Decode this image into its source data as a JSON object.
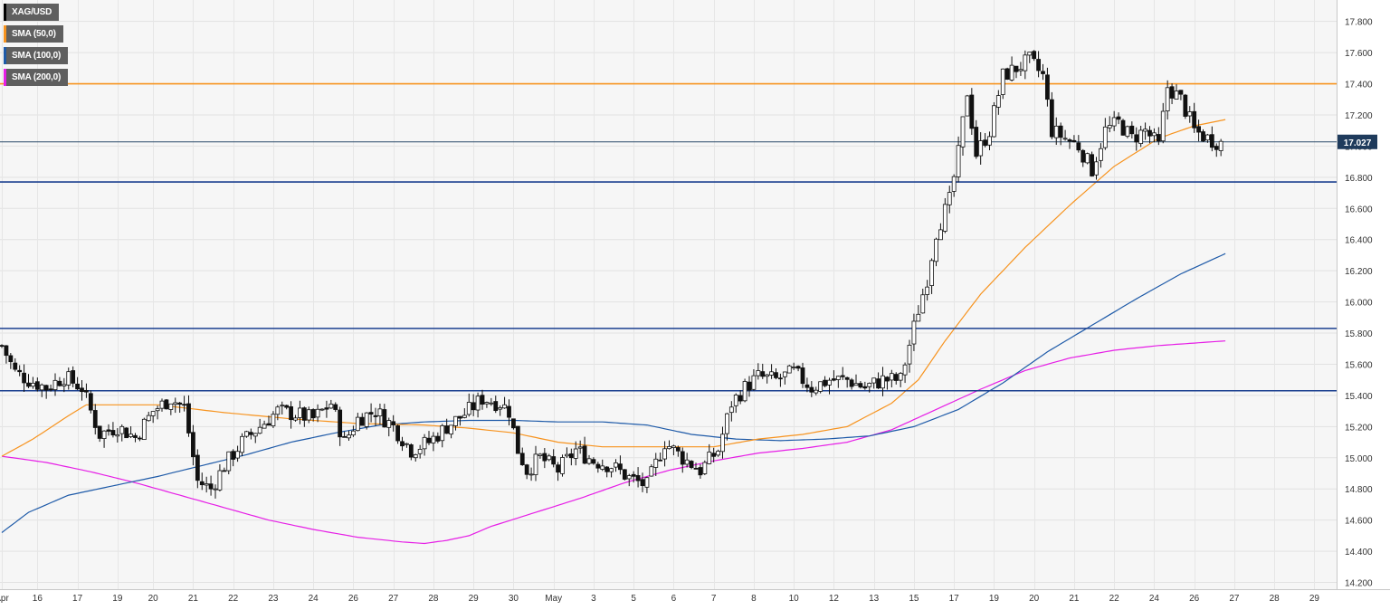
{
  "legend": [
    {
      "label": "XAG/USD",
      "color": "#000000"
    },
    {
      "label": "SMA (50,0)",
      "color": "#f7931e"
    },
    {
      "label": "SMA (100,0)",
      "color": "#1e5aa8"
    },
    {
      "label": "SMA (200,0)",
      "color": "#e61ee6"
    }
  ],
  "price_badge": "17.027",
  "chart_data": {
    "type": "candlestick",
    "title": "",
    "symbol": "XAG/USD",
    "ylim": [
      14.18,
      17.92
    ],
    "y_ticks": [
      "17.800",
      "17.600",
      "17.400",
      "17.200",
      "17.000",
      "16.800",
      "16.600",
      "16.400",
      "16.200",
      "16.000",
      "15.800",
      "15.600",
      "15.400",
      "15.200",
      "15.000",
      "14.800",
      "14.600",
      "14.400",
      "14.200"
    ],
    "y_tick_values": [
      17.8,
      17.6,
      17.4,
      17.2,
      17.0,
      16.8,
      16.6,
      16.4,
      16.2,
      16.0,
      15.8,
      15.6,
      15.4,
      15.2,
      15.0,
      14.8,
      14.6,
      14.4,
      14.2
    ],
    "x_ticks": [
      {
        "label": "Apr",
        "index": 0
      },
      {
        "label": "16",
        "index": 8
      },
      {
        "label": "17",
        "index": 17
      },
      {
        "label": "19",
        "index": 26
      },
      {
        "label": "20",
        "index": 34
      },
      {
        "label": "21",
        "index": 43
      },
      {
        "label": "22",
        "index": 52
      },
      {
        "label": "23",
        "index": 61
      },
      {
        "label": "24",
        "index": 70
      },
      {
        "label": "26",
        "index": 79
      },
      {
        "label": "27",
        "index": 88
      },
      {
        "label": "28",
        "index": 97
      },
      {
        "label": "29",
        "index": 106
      },
      {
        "label": "30",
        "index": 115
      },
      {
        "label": "May",
        "index": 124
      },
      {
        "label": "3",
        "index": 133
      },
      {
        "label": "5",
        "index": 142
      },
      {
        "label": "6",
        "index": 151
      },
      {
        "label": "7",
        "index": 160
      },
      {
        "label": "8",
        "index": 169
      },
      {
        "label": "10",
        "index": 178
      },
      {
        "label": "12",
        "index": 187
      },
      {
        "label": "13",
        "index": 196
      },
      {
        "label": "15",
        "index": 205
      },
      {
        "label": "17",
        "index": 214
      },
      {
        "label": "19",
        "index": 223
      },
      {
        "label": "20",
        "index": 232
      },
      {
        "label": "21",
        "index": 241
      },
      {
        "label": "22",
        "index": 250
      },
      {
        "label": "24",
        "index": 259
      },
      {
        "label": "26",
        "index": 268
      },
      {
        "label": "27",
        "index": 277
      },
      {
        "label": "28",
        "index": 286
      },
      {
        "label": "29",
        "index": 295
      }
    ],
    "x_count": 300,
    "current_price": 17.027,
    "horizontal_levels": [
      {
        "value": 17.4,
        "color": "#f7931e"
      },
      {
        "value": 16.77,
        "color": "#1a3f8f"
      },
      {
        "value": 15.83,
        "color": "#1a3f8f"
      },
      {
        "value": 15.43,
        "color": "#1a3f8f"
      }
    ],
    "price_anchors": [
      [
        0,
        15.72
      ],
      [
        3,
        15.55
      ],
      [
        6,
        15.5
      ],
      [
        10,
        15.45
      ],
      [
        14,
        15.52
      ],
      [
        18,
        15.45
      ],
      [
        22,
        15.15
      ],
      [
        26,
        15.2
      ],
      [
        30,
        15.13
      ],
      [
        34,
        15.3
      ],
      [
        38,
        15.38
      ],
      [
        41,
        15.32
      ],
      [
        44,
        14.85
      ],
      [
        47,
        14.8
      ],
      [
        50,
        14.95
      ],
      [
        54,
        15.1
      ],
      [
        58,
        15.2
      ],
      [
        62,
        15.3
      ],
      [
        66,
        15.28
      ],
      [
        70,
        15.25
      ],
      [
        74,
        15.35
      ],
      [
        77,
        15.1
      ],
      [
        80,
        15.25
      ],
      [
        84,
        15.3
      ],
      [
        88,
        15.2
      ],
      [
        92,
        15.05
      ],
      [
        96,
        15.1
      ],
      [
        100,
        15.2
      ],
      [
        104,
        15.28
      ],
      [
        108,
        15.38
      ],
      [
        112,
        15.35
      ],
      [
        114,
        15.3
      ],
      [
        116,
        15.05
      ],
      [
        118,
        14.92
      ],
      [
        121,
        15.0
      ],
      [
        125,
        14.92
      ],
      [
        129,
        15.05
      ],
      [
        133,
        14.98
      ],
      [
        137,
        14.95
      ],
      [
        141,
        14.87
      ],
      [
        145,
        14.82
      ],
      [
        149,
        15.1
      ],
      [
        153,
        15.0
      ],
      [
        157,
        14.92
      ],
      [
        161,
        15.05
      ],
      [
        164,
        15.35
      ],
      [
        167,
        15.45
      ],
      [
        170,
        15.52
      ],
      [
        174,
        15.5
      ],
      [
        178,
        15.55
      ],
      [
        182,
        15.45
      ],
      [
        186,
        15.5
      ],
      [
        190,
        15.5
      ],
      [
        194,
        15.45
      ],
      [
        198,
        15.5
      ],
      [
        202,
        15.5
      ],
      [
        206,
        15.95
      ],
      [
        208,
        16.15
      ],
      [
        210,
        16.45
      ],
      [
        213,
        16.65
      ],
      [
        215,
        16.95
      ],
      [
        217,
        17.35
      ],
      [
        219,
        16.95
      ],
      [
        222,
        17.1
      ],
      [
        225,
        17.45
      ],
      [
        228,
        17.5
      ],
      [
        231,
        17.55
      ],
      [
        234,
        17.45
      ],
      [
        236,
        17.1
      ],
      [
        239,
        17.05
      ],
      [
        242,
        17.0
      ],
      [
        245,
        16.85
      ],
      [
        248,
        17.1
      ],
      [
        251,
        17.15
      ],
      [
        254,
        17.05
      ],
      [
        257,
        17.1
      ],
      [
        260,
        17.0
      ],
      [
        262,
        17.38
      ],
      [
        265,
        17.3
      ],
      [
        268,
        17.1
      ],
      [
        271,
        17.05
      ],
      [
        274,
        17.02
      ]
    ],
    "sma50_anchors": [
      [
        0,
        15.01
      ],
      [
        7,
        15.12
      ],
      [
        15,
        15.27
      ],
      [
        19,
        15.34
      ],
      [
        26,
        15.34
      ],
      [
        35,
        15.34
      ],
      [
        50,
        15.29
      ],
      [
        65,
        15.25
      ],
      [
        80,
        15.22
      ],
      [
        95,
        15.21
      ],
      [
        105,
        15.19
      ],
      [
        115,
        15.16
      ],
      [
        125,
        15.1
      ],
      [
        135,
        15.07
      ],
      [
        148,
        15.07
      ],
      [
        160,
        15.07
      ],
      [
        170,
        15.12
      ],
      [
        180,
        15.15
      ],
      [
        190,
        15.2
      ],
      [
        200,
        15.35
      ],
      [
        206,
        15.5
      ],
      [
        212,
        15.75
      ],
      [
        220,
        16.05
      ],
      [
        230,
        16.35
      ],
      [
        240,
        16.62
      ],
      [
        250,
        16.87
      ],
      [
        260,
        17.05
      ],
      [
        268,
        17.13
      ],
      [
        275,
        17.17
      ]
    ],
    "sma100_anchors": [
      [
        0,
        14.52
      ],
      [
        6,
        14.65
      ],
      [
        15,
        14.76
      ],
      [
        25,
        14.82
      ],
      [
        35,
        14.88
      ],
      [
        45,
        14.95
      ],
      [
        55,
        15.02
      ],
      [
        65,
        15.1
      ],
      [
        75,
        15.16
      ],
      [
        85,
        15.21
      ],
      [
        95,
        15.23
      ],
      [
        105,
        15.24
      ],
      [
        115,
        15.24
      ],
      [
        125,
        15.23
      ],
      [
        135,
        15.23
      ],
      [
        145,
        15.21
      ],
      [
        155,
        15.15
      ],
      [
        165,
        15.12
      ],
      [
        175,
        15.11
      ],
      [
        185,
        15.12
      ],
      [
        195,
        15.14
      ],
      [
        205,
        15.2
      ],
      [
        215,
        15.31
      ],
      [
        225,
        15.48
      ],
      [
        235,
        15.68
      ],
      [
        245,
        15.85
      ],
      [
        255,
        16.02
      ],
      [
        265,
        16.18
      ],
      [
        275,
        16.31
      ]
    ],
    "sma200_anchors": [
      [
        0,
        15.01
      ],
      [
        10,
        14.97
      ],
      [
        20,
        14.91
      ],
      [
        30,
        14.84
      ],
      [
        40,
        14.76
      ],
      [
        50,
        14.68
      ],
      [
        60,
        14.6
      ],
      [
        70,
        14.54
      ],
      [
        80,
        14.49
      ],
      [
        90,
        14.46
      ],
      [
        95,
        14.45
      ],
      [
        100,
        14.47
      ],
      [
        105,
        14.5
      ],
      [
        110,
        14.56
      ],
      [
        120,
        14.65
      ],
      [
        130,
        14.74
      ],
      [
        140,
        14.84
      ],
      [
        150,
        14.92
      ],
      [
        160,
        14.98
      ],
      [
        170,
        15.03
      ],
      [
        180,
        15.06
      ],
      [
        190,
        15.1
      ],
      [
        200,
        15.18
      ],
      [
        210,
        15.31
      ],
      [
        220,
        15.44
      ],
      [
        230,
        15.56
      ],
      [
        240,
        15.64
      ],
      [
        250,
        15.69
      ],
      [
        260,
        15.72
      ],
      [
        275,
        15.75
      ]
    ],
    "grid": true,
    "legend_position": "top-left"
  }
}
